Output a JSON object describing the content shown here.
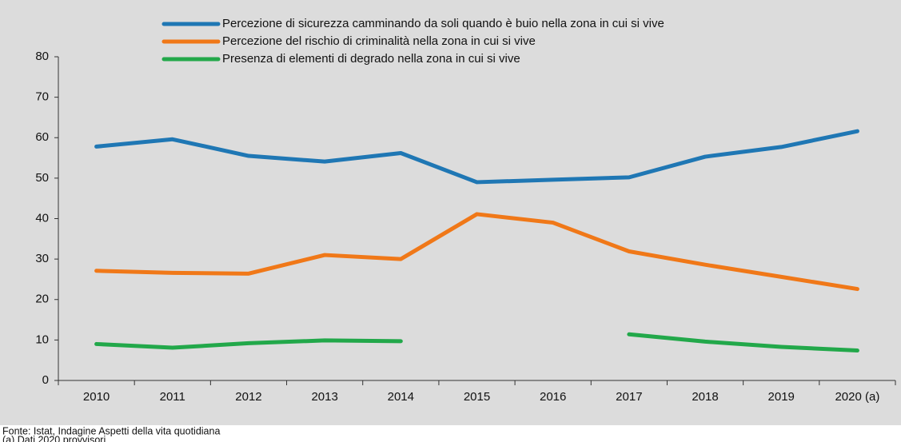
{
  "chart_data": {
    "type": "line",
    "categories": [
      "2010",
      "2011",
      "2012",
      "2013",
      "2014",
      "2015",
      "2016",
      "2017",
      "2018",
      "2019",
      "2020 (a)"
    ],
    "series": [
      {
        "name": "Percezione di sicurezza camminando da soli quando è buio nella zona in cui si vive",
        "color": "#1f77b4",
        "values": [
          57.8,
          59.6,
          55.5,
          54.1,
          56.2,
          49.0,
          49.6,
          50.2,
          55.3,
          57.7,
          61.6
        ]
      },
      {
        "name": "Percezione del rischio di criminalità nella zona in cui si vive",
        "color": "#f07818",
        "values": [
          27.1,
          26.6,
          26.4,
          31.0,
          30.0,
          41.1,
          39.0,
          31.9,
          28.6,
          25.6,
          22.6
        ]
      },
      {
        "name": "Presenza di elementi di degrado nella zona in cui si vive",
        "color": "#22a84a",
        "values": [
          9.0,
          8.1,
          9.2,
          9.9,
          9.7,
          null,
          null,
          11.4,
          9.6,
          8.3,
          7.4
        ]
      }
    ],
    "ylim": [
      0,
      80
    ],
    "yticks": [
      0,
      10,
      20,
      30,
      40,
      50,
      60,
      70,
      80
    ],
    "grid": false,
    "notes": [
      "Fonte: Istat, Indagine Aspetti della vita quotidiana",
      "(a) Dati 2020 provvisori."
    ]
  }
}
